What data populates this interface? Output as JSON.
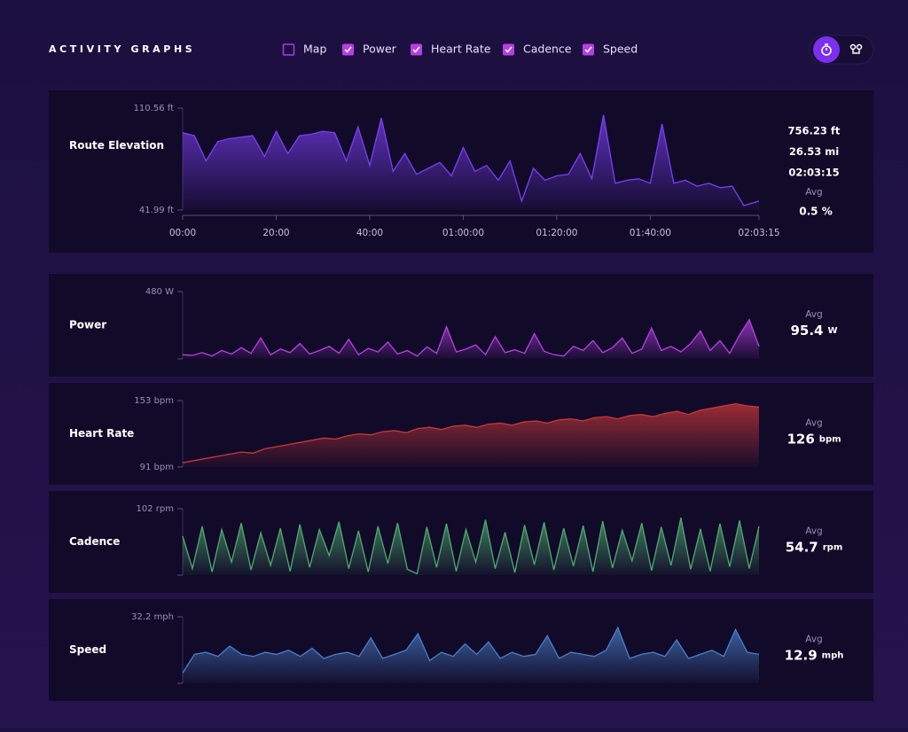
{
  "header": {
    "title": "ACTIVITY GRAPHS",
    "toggles": [
      {
        "label": "Map",
        "checked": false
      },
      {
        "label": "Power",
        "checked": true
      },
      {
        "label": "Heart Rate",
        "checked": true
      },
      {
        "label": "Cadence",
        "checked": true
      },
      {
        "label": "Speed",
        "checked": true
      }
    ]
  },
  "chart_data": [
    {
      "type": "area",
      "title": "Route Elevation",
      "color": "#7b3ff2",
      "x": [
        0,
        2.5,
        5,
        7.5,
        10,
        12.5,
        15,
        17.5,
        20,
        22.5,
        25,
        27.5,
        30,
        32.5,
        35,
        37.5,
        40,
        42.5,
        45,
        47.5,
        50,
        52.5,
        55,
        57.5,
        60,
        62.5,
        65,
        67.5,
        70,
        72.5,
        75,
        77.5,
        80,
        82.5,
        85,
        87.5,
        90,
        92.5,
        95,
        97.5,
        100,
        102.5,
        105,
        107.5,
        110,
        112.5,
        115,
        117.5,
        120,
        123.25
      ],
      "values": [
        94,
        92,
        75,
        88,
        90,
        91,
        92,
        78,
        95,
        80,
        92,
        93,
        95,
        94,
        75,
        98,
        72,
        104,
        68,
        80,
        66,
        70,
        74,
        65,
        84,
        68,
        72,
        62,
        75,
        48,
        70,
        62,
        65,
        66,
        80,
        63,
        106,
        60,
        62,
        63,
        60,
        100,
        60,
        62,
        58,
        60,
        57,
        58,
        45,
        48
      ],
      "xlim": [
        0,
        123.25
      ],
      "xticks": [
        {
          "value": 0,
          "label": "00:00"
        },
        {
          "value": 20,
          "label": "20:00"
        },
        {
          "value": 40,
          "label": "40:00"
        },
        {
          "value": 60,
          "label": "01:00:00"
        },
        {
          "value": 80,
          "label": "01:20:00"
        },
        {
          "value": 100,
          "label": "01:40:00"
        },
        {
          "value": 123.25,
          "label": "02:03:15"
        }
      ],
      "ylim": [
        41.99,
        110.56
      ],
      "yticks": [
        {
          "value": 110.56,
          "label": "110.56 ft"
        },
        {
          "value": 41.99,
          "label": "41.99 ft"
        }
      ],
      "stats": [
        "756.23 ft",
        "26.53 mi",
        "02:03:15"
      ],
      "avg_label": "Avg",
      "avg": "0.5 %"
    },
    {
      "type": "area",
      "title": "Power",
      "color": "#b541e0",
      "values": [
        30,
        25,
        45,
        20,
        60,
        35,
        80,
        40,
        150,
        30,
        70,
        45,
        110,
        35,
        60,
        90,
        40,
        140,
        30,
        75,
        50,
        120,
        35,
        60,
        20,
        85,
        40,
        230,
        50,
        70,
        100,
        30,
        160,
        45,
        65,
        40,
        180,
        55,
        30,
        20,
        90,
        60,
        130,
        45,
        80,
        150,
        40,
        70,
        220,
        60,
        90,
        50,
        110,
        200,
        60,
        130,
        40,
        170,
        280,
        90
      ],
      "ylim": [
        0,
        480
      ],
      "yticks": [
        {
          "value": 480,
          "label": "480 W"
        }
      ],
      "avg_label": "Avg",
      "avg": 95.4,
      "unit": "W"
    },
    {
      "type": "area",
      "title": "Heart Rate",
      "color": "#c83838",
      "values": [
        95,
        97,
        99,
        101,
        103,
        105,
        104,
        108,
        110,
        112,
        114,
        116,
        118,
        117,
        120,
        122,
        121,
        124,
        125,
        123,
        127,
        128,
        126,
        129,
        130,
        128,
        131,
        132,
        130,
        133,
        134,
        132,
        135,
        136,
        134,
        137,
        138,
        136,
        139,
        140,
        138,
        141,
        143,
        140,
        144,
        146,
        148,
        150,
        148,
        147
      ],
      "ylim": [
        91,
        153
      ],
      "yticks": [
        {
          "value": 153,
          "label": "153 bpm"
        },
        {
          "value": 91,
          "label": "91 bpm"
        }
      ],
      "avg_label": "Avg",
      "avg": 126,
      "unit": "bpm"
    },
    {
      "type": "area",
      "title": "Cadence",
      "color": "#4faa6f",
      "values": [
        60,
        10,
        75,
        5,
        70,
        20,
        80,
        8,
        65,
        15,
        72,
        6,
        78,
        12,
        70,
        30,
        82,
        10,
        68,
        5,
        75,
        18,
        80,
        9,
        2,
        74,
        12,
        79,
        6,
        70,
        20,
        85,
        10,
        66,
        4,
        77,
        16,
        81,
        8,
        72,
        14,
        76,
        5,
        83,
        11,
        69,
        22,
        80,
        7,
        74,
        15,
        88,
        9,
        71,
        6,
        79,
        13,
        84,
        10,
        75
      ],
      "ylim": [
        0,
        102
      ],
      "yticks": [
        {
          "value": 102,
          "label": "102 rpm"
        }
      ],
      "avg_label": "Avg",
      "avg": 54.7,
      "unit": "rpm"
    },
    {
      "type": "area",
      "title": "Speed",
      "color": "#4a7fc8",
      "values": [
        5,
        14,
        15,
        13,
        18,
        14,
        13,
        15,
        14,
        16,
        13,
        17,
        12,
        14,
        15,
        13,
        22,
        12,
        14,
        16,
        24,
        11,
        15,
        13,
        19,
        14,
        20,
        12,
        15,
        13,
        14,
        23,
        12,
        15,
        14,
        13,
        16,
        27,
        12,
        14,
        15,
        13,
        21,
        12,
        14,
        16,
        13,
        26,
        15,
        14
      ],
      "ylim": [
        0,
        32.2
      ],
      "yticks": [
        {
          "value": 32.2,
          "label": "32.2 mph"
        }
      ],
      "avg_label": "Avg",
      "avg": 12.9,
      "unit": "mph"
    }
  ]
}
